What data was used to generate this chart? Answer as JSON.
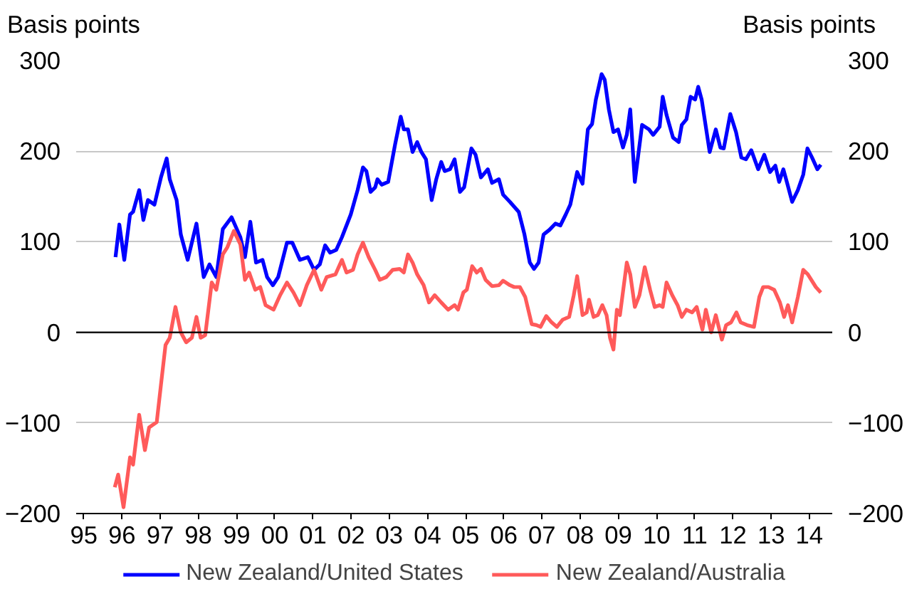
{
  "chart_data": {
    "type": "line",
    "ylabel": "Basis points",
    "y2label": "Basis points",
    "xlim": [
      1994.8,
      2014.6
    ],
    "xticks": [
      {
        "value": 1995,
        "label": "95"
      },
      {
        "value": 1996,
        "label": "96"
      },
      {
        "value": 1997,
        "label": "97"
      },
      {
        "value": 1998,
        "label": "98"
      },
      {
        "value": 1999,
        "label": "99"
      },
      {
        "value": 2000,
        "label": "00"
      },
      {
        "value": 2001,
        "label": "01"
      },
      {
        "value": 2002,
        "label": "02"
      },
      {
        "value": 2003,
        "label": "03"
      },
      {
        "value": 2004,
        "label": "04"
      },
      {
        "value": 2005,
        "label": "05"
      },
      {
        "value": 2006,
        "label": "06"
      },
      {
        "value": 2007,
        "label": "07"
      },
      {
        "value": 2008,
        "label": "08"
      },
      {
        "value": 2009,
        "label": "09"
      },
      {
        "value": 2010,
        "label": "10"
      },
      {
        "value": 2011,
        "label": "11"
      },
      {
        "value": 2012,
        "label": "12"
      },
      {
        "value": 2013,
        "label": "13"
      },
      {
        "value": 2014,
        "label": "14"
      }
    ],
    "ylim": [
      -200,
      300
    ],
    "yticks": [
      -200,
      -100,
      0,
      100,
      200,
      300
    ],
    "y2lim": [
      -200,
      300
    ],
    "y2ticks": [
      -200,
      -100,
      0,
      100,
      200,
      300
    ],
    "grid": "y",
    "legend": "bottom",
    "line_style": "solid",
    "marker": "none",
    "ref_lines": [
      {
        "axis": "y",
        "value": 0,
        "color": "#000000"
      }
    ],
    "series": [
      {
        "name": "New Zealand/United States",
        "color": "#0000ff",
        "x": [
          1995.83,
          1995.93,
          1996.06,
          1996.21,
          1996.29,
          1996.45,
          1996.56,
          1996.68,
          1996.85,
          1997.02,
          1997.17,
          1997.25,
          1997.43,
          1997.54,
          1997.72,
          1997.95,
          1998.14,
          1998.29,
          1998.47,
          1998.64,
          1998.87,
          1999.1,
          1999.22,
          1999.36,
          1999.51,
          1999.68,
          1999.8,
          1999.95,
          2000.09,
          2000.32,
          2000.46,
          2000.66,
          2000.87,
          2001.03,
          2001.18,
          2001.32,
          2001.45,
          2001.61,
          2001.76,
          2001.99,
          2002.17,
          2002.31,
          2002.4,
          2002.51,
          2002.63,
          2002.69,
          2002.8,
          2002.97,
          2003.15,
          2003.3,
          2003.38,
          2003.49,
          2003.61,
          2003.73,
          2003.84,
          2003.96,
          2004.11,
          2004.23,
          2004.36,
          2004.45,
          2004.59,
          2004.71,
          2004.85,
          2004.96,
          2005.15,
          2005.26,
          2005.4,
          2005.58,
          2005.69,
          2005.87,
          2005.98,
          2006.16,
          2006.39,
          2006.54,
          2006.68,
          2006.79,
          2006.91,
          2007.04,
          2007.19,
          2007.35,
          2007.48,
          2007.62,
          2007.74,
          2007.92,
          2008.06,
          2008.2,
          2008.31,
          2008.41,
          2008.56,
          2008.64,
          2008.75,
          2008.87,
          2008.99,
          2009.12,
          2009.22,
          2009.31,
          2009.43,
          2009.62,
          2009.8,
          2009.91,
          2010.08,
          2010.16,
          2010.26,
          2010.43,
          2010.58,
          2010.66,
          2010.78,
          2010.89,
          2011.01,
          2011.09,
          2011.18,
          2011.39,
          2011.55,
          2011.67,
          2011.76,
          2011.93,
          2012.08,
          2012.22,
          2012.34,
          2012.48,
          2012.66,
          2012.82,
          2012.97,
          2013.11,
          2013.21,
          2013.32,
          2013.43,
          2013.55,
          2013.7,
          2013.84,
          2013.95,
          2014.07,
          2014.21,
          2014.3
        ],
        "values": [
          83,
          119,
          80,
          130,
          133,
          157,
          124,
          146,
          141,
          171,
          192,
          169,
          146,
          108,
          80,
          120,
          61,
          75,
          61,
          114,
          127,
          105,
          83,
          122,
          77,
          80,
          61,
          52,
          61,
          99,
          99,
          80,
          83,
          69,
          75,
          96,
          88,
          91,
          105,
          130,
          157,
          182,
          178,
          155,
          160,
          169,
          163,
          166,
          207,
          238,
          224,
          224,
          199,
          210,
          199,
          191,
          146,
          169,
          188,
          178,
          180,
          191,
          155,
          160,
          203,
          196,
          171,
          180,
          165,
          169,
          152,
          144,
          133,
          108,
          77,
          70,
          77,
          108,
          113,
          120,
          118,
          130,
          141,
          177,
          164,
          224,
          230,
          257,
          285,
          279,
          246,
          221,
          224,
          204,
          218,
          246,
          166,
          229,
          224,
          218,
          227,
          260,
          240,
          215,
          210,
          229,
          235,
          260,
          257,
          271,
          257,
          199,
          224,
          204,
          203,
          241,
          221,
          193,
          191,
          201,
          180,
          196,
          177,
          184,
          166,
          180,
          163,
          144,
          157,
          174,
          203,
          193,
          180,
          185
        ]
      },
      {
        "name": "New Zealand/Australia",
        "color": "#ff5a5a",
        "x": [
          1995.81,
          1995.9,
          1996.04,
          1996.21,
          1996.29,
          1996.45,
          1996.6,
          1996.71,
          1996.91,
          1997.02,
          1997.14,
          1997.25,
          1997.4,
          1997.54,
          1997.68,
          1997.83,
          1997.95,
          1998.06,
          1998.18,
          1998.35,
          1998.47,
          1998.64,
          1998.76,
          1998.93,
          1999.1,
          1999.22,
          1999.33,
          1999.49,
          1999.62,
          1999.76,
          1999.97,
          2000.14,
          2000.32,
          2000.49,
          2000.66,
          2000.84,
          2001.03,
          2001.22,
          2001.36,
          2001.59,
          2001.76,
          2001.88,
          2002.05,
          2002.17,
          2002.31,
          2002.46,
          2002.63,
          2002.75,
          2002.92,
          2003.09,
          2003.27,
          2003.38,
          2003.49,
          2003.61,
          2003.73,
          2003.9,
          2004.04,
          2004.19,
          2004.36,
          2004.54,
          2004.71,
          2004.8,
          2004.94,
          2005.03,
          2005.17,
          2005.29,
          2005.4,
          2005.52,
          2005.69,
          2005.87,
          2005.98,
          2006.16,
          2006.27,
          2006.42,
          2006.56,
          2006.73,
          2006.85,
          2006.96,
          2007.11,
          2007.25,
          2007.39,
          2007.54,
          2007.71,
          2007.83,
          2007.92,
          2008.06,
          2008.17,
          2008.23,
          2008.35,
          2008.46,
          2008.58,
          2008.69,
          2008.78,
          2008.87,
          2008.96,
          2009.04,
          2009.22,
          2009.31,
          2009.43,
          2009.55,
          2009.69,
          2009.83,
          2009.95,
          2010.08,
          2010.16,
          2010.26,
          2010.41,
          2010.55,
          2010.66,
          2010.78,
          2010.93,
          2011.05,
          2011.2,
          2011.29,
          2011.43,
          2011.55,
          2011.71,
          2011.82,
          2011.95,
          2012.09,
          2012.2,
          2012.37,
          2012.55,
          2012.69,
          2012.79,
          2012.93,
          2013.08,
          2013.23,
          2013.34,
          2013.44,
          2013.55,
          2013.7,
          2013.84,
          2013.96,
          2014.17,
          2014.3
        ],
        "values": [
          -171,
          -157,
          -193,
          -138,
          -146,
          -91,
          -130,
          -105,
          -99,
          -58,
          -14,
          -6,
          28,
          0,
          -11,
          -6,
          17,
          -6,
          -3,
          55,
          47,
          86,
          94,
          112,
          97,
          58,
          66,
          47,
          50,
          30,
          25,
          41,
          55,
          44,
          30,
          52,
          69,
          47,
          61,
          64,
          80,
          66,
          69,
          86,
          99,
          83,
          69,
          58,
          61,
          69,
          70,
          66,
          86,
          77,
          64,
          52,
          33,
          41,
          33,
          25,
          30,
          25,
          44,
          47,
          73,
          66,
          70,
          58,
          51,
          52,
          57,
          52,
          50,
          50,
          39,
          9,
          8,
          6,
          18,
          11,
          6,
          14,
          17,
          41,
          62,
          19,
          22,
          36,
          17,
          19,
          30,
          19,
          -6,
          -19,
          25,
          19,
          77,
          64,
          28,
          41,
          72,
          47,
          28,
          30,
          28,
          55,
          41,
          30,
          17,
          25,
          22,
          28,
          3,
          25,
          0,
          19,
          -8,
          8,
          11,
          22,
          11,
          8,
          6,
          39,
          50,
          50,
          47,
          33,
          17,
          30,
          11,
          39,
          69,
          64,
          50,
          44
        ]
      }
    ]
  }
}
